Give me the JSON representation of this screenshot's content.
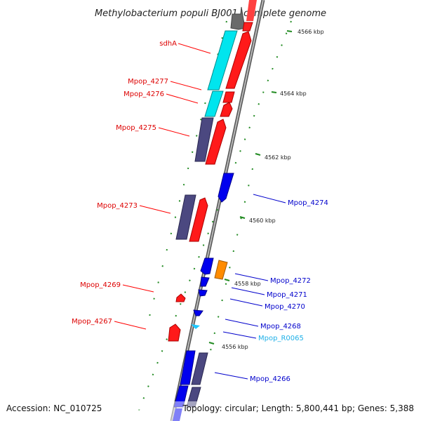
{
  "title": "Methylobacterium populi BJ001, complete genome",
  "accession": "Accession: NC_010725",
  "topology": "Topology: circular; Length: 5,800,441 bp; Genes: 5,388",
  "colors": {
    "forward_cds": "#ff0000",
    "reverse_cds": "#0000ff",
    "forward_rna": "#00ffff",
    "reverse_misc": "#ff8c00",
    "slate_cds": "#4b4880",
    "tick": "#228b22",
    "backbone": "#808080"
  },
  "scale_ticks": [
    {
      "label": "4566 kbp"
    },
    {
      "label": "4564 kbp"
    },
    {
      "label": "4562 kbp"
    },
    {
      "label": "4560 kbp"
    },
    {
      "label": "4558 kbp"
    },
    {
      "label": "4556 kbp"
    }
  ],
  "left_labels": [
    {
      "text": "sdhA"
    },
    {
      "text": "Mpop_4277"
    },
    {
      "text": "Mpop_4276"
    },
    {
      "text": "Mpop_4275"
    },
    {
      "text": "Mpop_4273"
    },
    {
      "text": "Mpop_4269"
    },
    {
      "text": "Mpop_4267"
    }
  ],
  "right_labels": [
    {
      "text": "Mpop_4274"
    },
    {
      "text": "Mpop_4272"
    },
    {
      "text": "Mpop_4271"
    },
    {
      "text": "Mpop_4270"
    },
    {
      "text": "Mpop_4268"
    },
    {
      "text": "Mpop_R0065"
    },
    {
      "text": "Mpop_4266"
    }
  ]
}
